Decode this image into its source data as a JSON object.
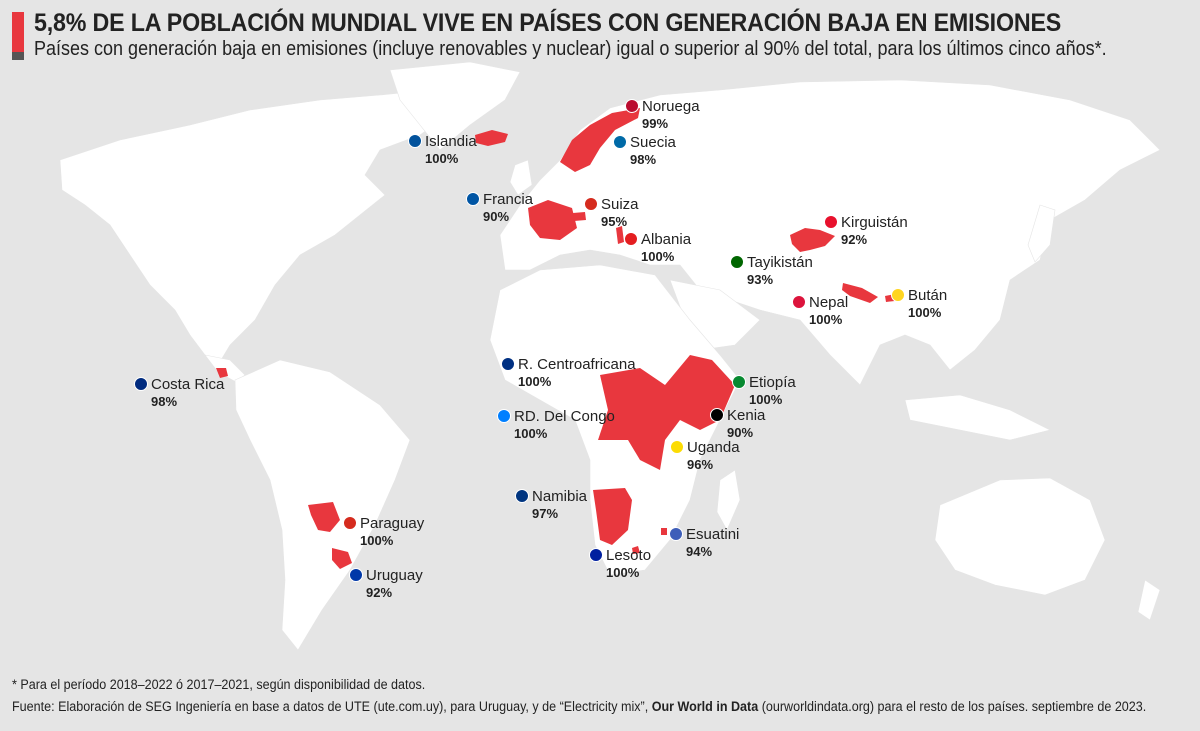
{
  "header": {
    "title": "5,8% DE LA POBLACIÓN MUNDIAL VIVE EN PAÍSES CON GENERACIÓN BAJA EN EMISIONES",
    "subtitle": "Países con generación baja en emisiones (incluye renovables y nuclear) igual o superior al 90% del total, para los últimos cinco años*."
  },
  "colors": {
    "accent": "#e8373e",
    "land": "#ffffff",
    "highlight": "#e8373e",
    "ocean": "#e5e5e5"
  },
  "countries": [
    {
      "name": "Noruega",
      "value": "99%",
      "flag": "#ba0c2f"
    },
    {
      "name": "Islandia",
      "value": "100%",
      "flag": "#02529c"
    },
    {
      "name": "Suecia",
      "value": "98%",
      "flag": "#006aa7"
    },
    {
      "name": "Francia",
      "value": "90%",
      "flag": "#0055a4"
    },
    {
      "name": "Suiza",
      "value": "95%",
      "flag": "#d52b1e"
    },
    {
      "name": "Albania",
      "value": "100%",
      "flag": "#e41e20"
    },
    {
      "name": "Kirguistán",
      "value": "92%",
      "flag": "#e8112d"
    },
    {
      "name": "Tayikistán",
      "value": "93%",
      "flag": "#006600"
    },
    {
      "name": "Nepal",
      "value": "100%",
      "flag": "#dc143c"
    },
    {
      "name": "Bután",
      "value": "100%",
      "flag": "#ffd520"
    },
    {
      "name": "R. Centroafricana",
      "value": "100%",
      "flag": "#003082"
    },
    {
      "name": "Costa Rica",
      "value": "98%",
      "flag": "#002b7f"
    },
    {
      "name": "Etiopía",
      "value": "100%",
      "flag": "#078930"
    },
    {
      "name": "Kenia",
      "value": "90%",
      "flag": "#000000"
    },
    {
      "name": "RD. Del Congo",
      "value": "100%",
      "flag": "#007fff"
    },
    {
      "name": "Uganda",
      "value": "96%",
      "flag": "#fcdc04"
    },
    {
      "name": "Namibia",
      "value": "97%",
      "flag": "#003580"
    },
    {
      "name": "Paraguay",
      "value": "100%",
      "flag": "#d52b1e"
    },
    {
      "name": "Esuatini",
      "value": "94%",
      "flag": "#3e5eb9"
    },
    {
      "name": "Lesoto",
      "value": "100%",
      "flag": "#00209f"
    },
    {
      "name": "Uruguay",
      "value": "92%",
      "flag": "#0038a8"
    }
  ],
  "footer": {
    "note": "* Para el período 2018–2022 ó 2017–2021, según disponibilidad de datos.",
    "source_prefix": "Fuente: Elaboración de SEG Ingeniería en base a datos de UTE (ute.com.uy), para Uruguay, y de “Electricity mix”,",
    "source_bold": "Our World in Data",
    "source_suffix": "(ourworldindata.org) para el resto de los países. septiembre de 2023."
  }
}
